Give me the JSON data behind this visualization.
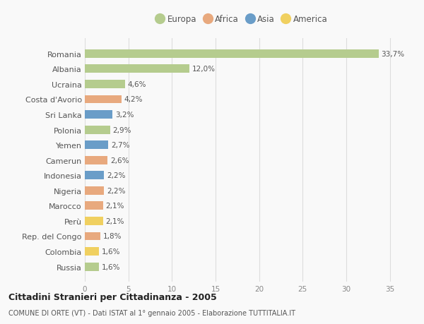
{
  "countries": [
    "Romania",
    "Albania",
    "Ucraina",
    "Costa d'Avorio",
    "Sri Lanka",
    "Polonia",
    "Yemen",
    "Camerun",
    "Indonesia",
    "Nigeria",
    "Marocco",
    "Perù",
    "Rep. del Congo",
    "Colombia",
    "Russia"
  ],
  "values": [
    33.7,
    12.0,
    4.6,
    4.2,
    3.2,
    2.9,
    2.7,
    2.6,
    2.2,
    2.2,
    2.1,
    2.1,
    1.8,
    1.6,
    1.6
  ],
  "labels": [
    "33,7%",
    "12,0%",
    "4,6%",
    "4,2%",
    "3,2%",
    "2,9%",
    "2,7%",
    "2,6%",
    "2,2%",
    "2,2%",
    "2,1%",
    "2,1%",
    "1,8%",
    "1,6%",
    "1,6%"
  ],
  "continents": [
    "Europa",
    "Europa",
    "Europa",
    "Africa",
    "Asia",
    "Europa",
    "Asia",
    "Africa",
    "Asia",
    "Africa",
    "Africa",
    "America",
    "Africa",
    "America",
    "Europa"
  ],
  "colors": {
    "Europa": "#b5cc8e",
    "Africa": "#e8a97e",
    "Asia": "#6a9dc8",
    "America": "#f0d060"
  },
  "legend_order": [
    "Europa",
    "Africa",
    "Asia",
    "America"
  ],
  "title": "Cittadini Stranieri per Cittadinanza - 2005",
  "subtitle": "COMUNE DI ORTE (VT) - Dati ISTAT al 1° gennaio 2005 - Elaborazione TUTTITALIA.IT",
  "xlim": [
    0,
    36
  ],
  "xticks": [
    0,
    5,
    10,
    15,
    20,
    25,
    30,
    35
  ],
  "background_color": "#f9f9f9",
  "grid_color": "#dddddd",
  "bar_height": 0.55
}
